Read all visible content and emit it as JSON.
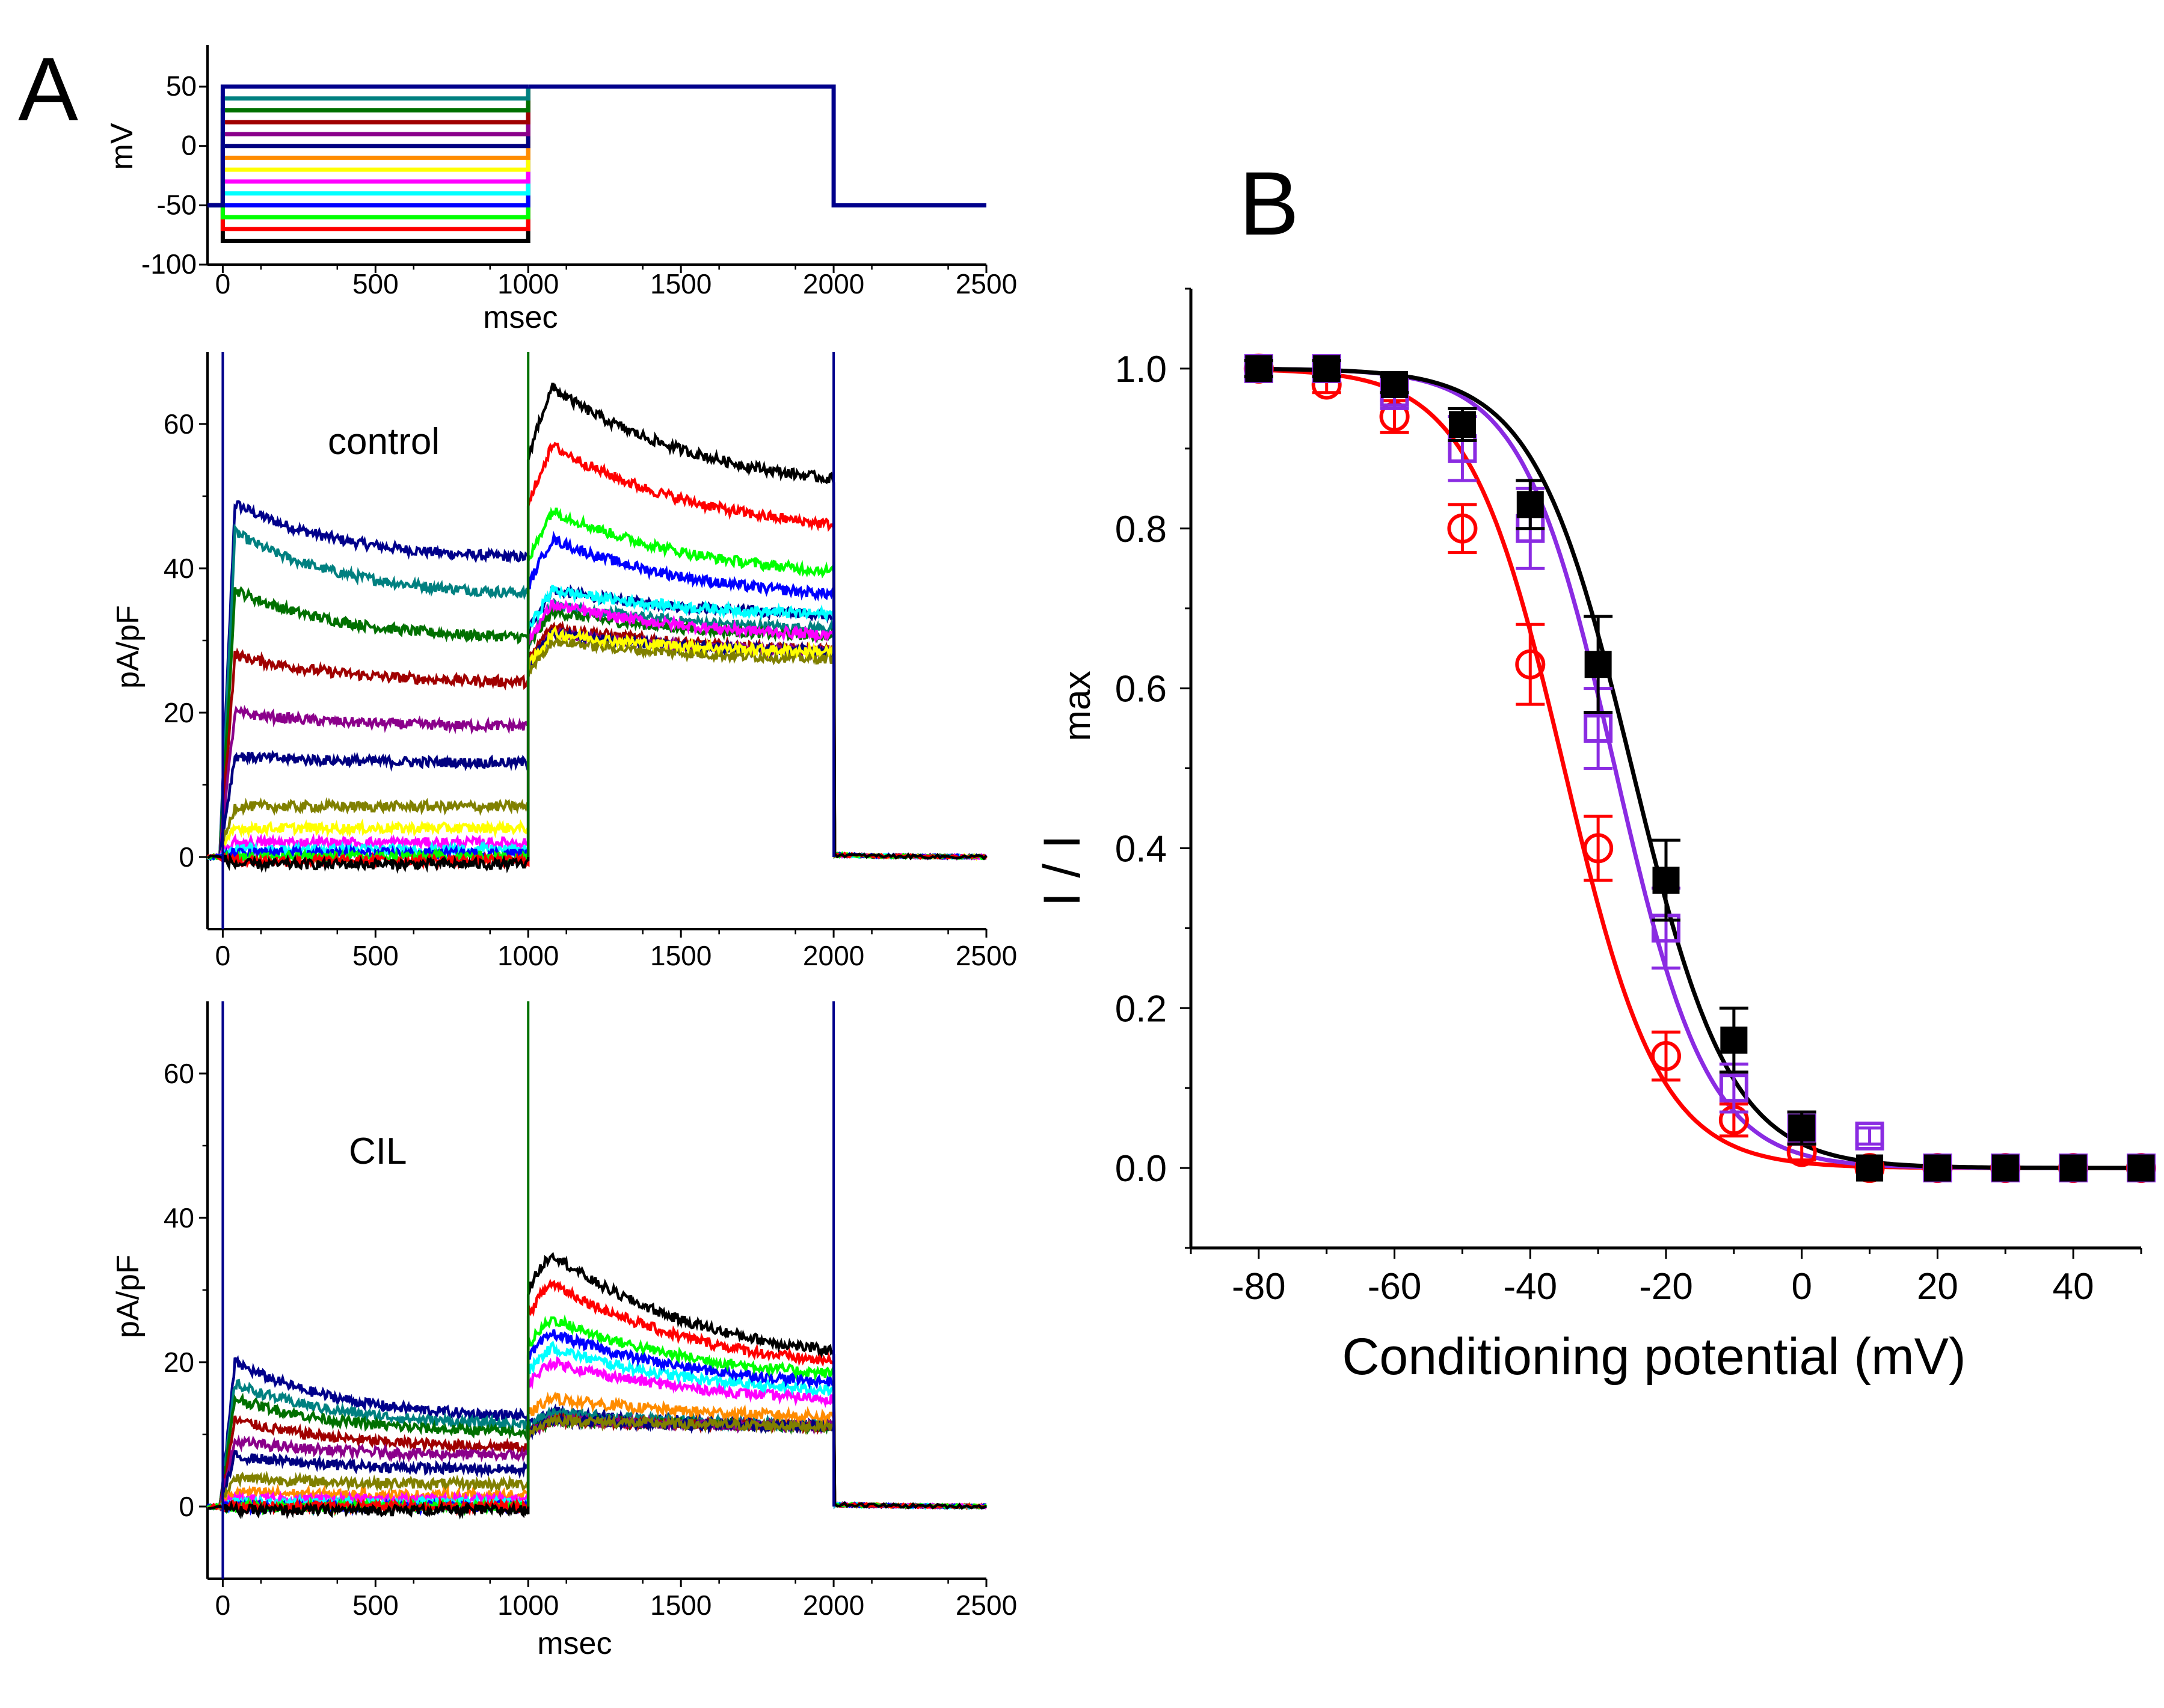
{
  "figure": {
    "panel_a_label": "A",
    "panel_b_label": "B"
  },
  "colors": {
    "black": "#000000",
    "red": "#ff0000",
    "green": "#00ff00",
    "blue": "#0000ff",
    "cyan": "#00ffff",
    "magenta": "#ff00ff",
    "yellow": "#ffff00",
    "navy": "#000080",
    "darkblue": "#00008b",
    "teal": "#008080",
    "darkgreen": "#007000",
    "darkred": "#a00000",
    "purple": "#8b008b",
    "olive": "#808000",
    "orange": "#ff8c00",
    "violet": "#8a2be2",
    "gray": "#808080"
  },
  "chart_data": [
    {
      "id": "protocol",
      "type": "line",
      "title": "",
      "xlabel": "msec",
      "ylabel": "mV",
      "xlim": [
        -50,
        2500
      ],
      "ylim": [
        -100,
        85
      ],
      "xticks": [
        0,
        500,
        1000,
        1500,
        2000,
        2500
      ],
      "yticks": [
        -100,
        -50,
        0,
        50
      ],
      "xtick_labels": [
        "0",
        "500",
        "1000",
        "1500",
        "2000",
        "2500"
      ],
      "ytick_labels": [
        "-100",
        "-50",
        "0",
        "50"
      ],
      "holding_mV": -50,
      "test_mV": 50,
      "conditioning_mV": [
        -80,
        -70,
        -60,
        -50,
        -40,
        -30,
        -20,
        -10,
        0,
        10,
        20,
        30,
        40,
        50
      ],
      "conditioning_colors": [
        "black",
        "red",
        "green",
        "blue",
        "cyan",
        "magenta",
        "yellow",
        "orange",
        "navy",
        "purple",
        "darkred",
        "darkgreen",
        "teal",
        "darkblue"
      ],
      "pulse_times_ms": [
        0,
        1000,
        2000
      ]
    },
    {
      "id": "control",
      "type": "line",
      "annotation": "control",
      "xlabel": "",
      "ylabel": "pA/pF",
      "xlim": [
        -50,
        2500
      ],
      "ylim": [
        -10,
        70
      ],
      "xticks": [
        0,
        500,
        1000,
        1500,
        2000,
        2500
      ],
      "yticks": [
        0,
        20,
        40,
        60
      ],
      "xtick_labels": [
        "0",
        "500",
        "1000",
        "1500",
        "2000",
        "2500"
      ],
      "ytick_labels": [
        "0",
        "20",
        "40",
        "60"
      ],
      "series": [
        {
          "color": "darkblue",
          "p1_peak": 49,
          "p1_end": 41,
          "p2_peak": 37,
          "p2_end": 33
        },
        {
          "color": "teal",
          "p1_peak": 45,
          "p1_end": 36,
          "p2_peak": 35,
          "p2_end": 31
        },
        {
          "color": "darkgreen",
          "p1_peak": 37,
          "p1_end": 30,
          "p2_peak": 34,
          "p2_end": 30
        },
        {
          "color": "darkred",
          "p1_peak": 28,
          "p1_end": 24,
          "p2_peak": 32,
          "p2_end": 28
        },
        {
          "color": "purple",
          "p1_peak": 20,
          "p1_end": 18,
          "p2_peak": 31,
          "p2_end": 28
        },
        {
          "color": "navy",
          "p1_peak": 14,
          "p1_end": 13,
          "p2_peak": 31,
          "p2_end": 28
        },
        {
          "color": "olive",
          "p1_peak": 7,
          "p1_end": 7,
          "p2_peak": 30,
          "p2_end": 27
        },
        {
          "color": "yellow",
          "p1_peak": 4,
          "p1_end": 4,
          "p2_peak": 31,
          "p2_end": 28
        },
        {
          "color": "magenta",
          "p1_peak": 2,
          "p1_end": 2,
          "p2_peak": 35,
          "p2_end": 30
        },
        {
          "color": "cyan",
          "p1_peak": 1,
          "p1_end": 1,
          "p2_peak": 37,
          "p2_end": 33
        },
        {
          "color": "blue",
          "p1_peak": 0.5,
          "p1_end": 0.5,
          "p2_peak": 44,
          "p2_end": 35
        },
        {
          "color": "green",
          "p1_peak": 0,
          "p1_end": 0,
          "p2_peak": 48,
          "p2_end": 38
        },
        {
          "color": "red",
          "p1_peak": -0.5,
          "p1_end": -0.5,
          "p2_peak": 57,
          "p2_end": 44
        },
        {
          "color": "black",
          "p1_peak": -1,
          "p1_end": -1,
          "p2_peak": 65,
          "p2_end": 50
        }
      ]
    },
    {
      "id": "cil",
      "type": "line",
      "annotation": "CIL",
      "xlabel": "msec",
      "ylabel": "pA/pF",
      "xlim": [
        -50,
        2500
      ],
      "ylim": [
        -10,
        70
      ],
      "xticks": [
        0,
        500,
        1000,
        1500,
        2000,
        2500
      ],
      "yticks": [
        0,
        20,
        40,
        60
      ],
      "xtick_labels": [
        "0",
        "500",
        "1000",
        "1500",
        "2000",
        "2500"
      ],
      "ytick_labels": [
        "0",
        "20",
        "40",
        "60"
      ],
      "series": [
        {
          "color": "darkblue",
          "p1_peak": 20,
          "p1_end": 12,
          "p2_peak": 13,
          "p2_end": 11
        },
        {
          "color": "teal",
          "p1_peak": 17,
          "p1_end": 11,
          "p2_peak": 13,
          "p2_end": 11
        },
        {
          "color": "darkgreen",
          "p1_peak": 15,
          "p1_end": 10,
          "p2_peak": 12,
          "p2_end": 11
        },
        {
          "color": "darkred",
          "p1_peak": 12,
          "p1_end": 8,
          "p2_peak": 12,
          "p2_end": 11
        },
        {
          "color": "purple",
          "p1_peak": 9,
          "p1_end": 7,
          "p2_peak": 12,
          "p2_end": 11
        },
        {
          "color": "navy",
          "p1_peak": 7,
          "p1_end": 5,
          "p2_peak": 12,
          "p2_end": 11
        },
        {
          "color": "olive",
          "p1_peak": 4,
          "p1_end": 3,
          "p2_peak": 12,
          "p2_end": 11
        },
        {
          "color": "orange",
          "p1_peak": 2,
          "p1_end": 1.5,
          "p2_peak": 15,
          "p2_end": 12
        },
        {
          "color": "magenta",
          "p1_peak": 1,
          "p1_end": 1,
          "p2_peak": 20,
          "p2_end": 14
        },
        {
          "color": "cyan",
          "p1_peak": 0.5,
          "p1_end": 0.5,
          "p2_peak": 22,
          "p2_end": 15
        },
        {
          "color": "blue",
          "p1_peak": 0,
          "p1_end": 0,
          "p2_peak": 24,
          "p2_end": 16
        },
        {
          "color": "green",
          "p1_peak": 0,
          "p1_end": 0,
          "p2_peak": 26,
          "p2_end": 17
        },
        {
          "color": "red",
          "p1_peak": 0,
          "p1_end": 0,
          "p2_peak": 31,
          "p2_end": 18
        },
        {
          "color": "black",
          "p1_peak": -0.5,
          "p1_end": -0.5,
          "p2_peak": 35,
          "p2_end": 19
        }
      ]
    },
    {
      "id": "inactivation",
      "type": "scatter",
      "xlabel": "Conditioning potential (mV)",
      "ylabel_main": "I / I",
      "ylabel_sub": "max",
      "xlim": [
        -90,
        50
      ],
      "ylim": [
        -0.1,
        1.1
      ],
      "xticks": [
        -80,
        -60,
        -40,
        -20,
        0,
        20,
        40
      ],
      "yticks": [
        0.0,
        0.2,
        0.4,
        0.6,
        0.8,
        1.0
      ],
      "xtick_labels": [
        "-80",
        "-60",
        "-40",
        "-20",
        "0",
        "20",
        "40"
      ],
      "ytick_labels": [
        "0.0",
        "0.2",
        "0.4",
        "0.6",
        "0.8",
        "1.0"
      ],
      "x": [
        -80,
        -70,
        -60,
        -50,
        -40,
        -30,
        -20,
        -10,
        0,
        10,
        20,
        30,
        40,
        50
      ],
      "series": [
        {
          "name": "red-circles",
          "marker": "circle-open",
          "color": "red",
          "y": [
            1.0,
            0.98,
            0.94,
            0.8,
            0.63,
            0.4,
            0.14,
            0.06,
            0.02,
            0.0,
            0.0,
            0.0,
            0.0,
            0.0
          ],
          "err": [
            0.01,
            0.01,
            0.02,
            0.03,
            0.05,
            0.04,
            0.03,
            0.02,
            0.01,
            0.0,
            0.0,
            0.0,
            0.0,
            0.0
          ],
          "fit_v_half": -35,
          "fit_k": 7.0
        },
        {
          "name": "violet-squares",
          "marker": "square-open",
          "color": "violet",
          "y": [
            1.0,
            1.0,
            0.97,
            0.9,
            0.8,
            0.55,
            0.3,
            0.1,
            0.05,
            0.04,
            0.0,
            0.0,
            0.0,
            0.0
          ],
          "err": [
            0.01,
            0.01,
            0.02,
            0.04,
            0.05,
            0.05,
            0.05,
            0.03,
            0.02,
            0.01,
            0.0,
            0.0,
            0.0,
            0.0
          ],
          "fit_v_half": -27.5,
          "fit_k": 6.8
        },
        {
          "name": "black-squares",
          "marker": "square-filled",
          "color": "black",
          "y": [
            1.0,
            1.0,
            0.98,
            0.93,
            0.83,
            0.63,
            0.36,
            0.16,
            0.05,
            0.0,
            0.0,
            0.0,
            0.0,
            0.0
          ],
          "err": [
            0.01,
            0.01,
            0.01,
            0.02,
            0.03,
            0.06,
            0.05,
            0.04,
            0.02,
            0.0,
            0.0,
            0.0,
            0.0,
            0.0
          ],
          "fit_v_half": -25,
          "fit_k": 7.2
        }
      ]
    }
  ]
}
